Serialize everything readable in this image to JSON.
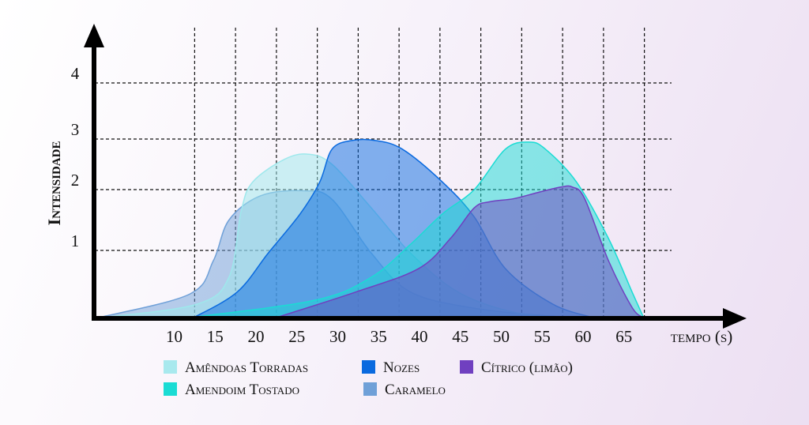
{
  "chart_data": {
    "type": "area",
    "title": "",
    "xlabel": "tempo (s)",
    "ylabel": "Intensidade",
    "x_ticks": [
      10,
      15,
      20,
      25,
      30,
      35,
      40,
      45,
      50,
      55,
      60,
      65
    ],
    "y_ticks": [
      1,
      2,
      3,
      4
    ],
    "xlim": [
      0,
      70
    ],
    "ylim": [
      0,
      4.5
    ],
    "grid": true,
    "legend_position": "bottom",
    "series": [
      {
        "name": "Caramelo",
        "color": "#6fa0d8",
        "x": [
          0.8,
          11.9,
          14.8,
          16.7,
          20.6,
          25.9,
          29.3,
          34.1,
          38.9,
          46.7,
          56,
          61.2
        ],
        "y": [
          0,
          0.35,
          0.85,
          1.5,
          1.9,
          1.98,
          1.84,
          0.96,
          0.38,
          0.14,
          0.02,
          0
        ]
      },
      {
        "name": "Amêndoas Torradas",
        "color": "#9ee8ec",
        "x": [
          1.3,
          12.8,
          16.7,
          18.2,
          19.6,
          23.5,
          26.4,
          29.3,
          34.1,
          38.9,
          44.7,
          51.5,
          58.3
        ],
        "y": [
          0,
          0.2,
          0.6,
          1.65,
          2.15,
          2.6,
          2.7,
          2.5,
          1.7,
          0.96,
          0.38,
          0.08,
          0
        ]
      },
      {
        "name": "Nozes",
        "color": "#0a6adf",
        "x": [
          12.4,
          17.7,
          21.5,
          25.4,
          27.8,
          29.3,
          31.7,
          34.6,
          37.9,
          42.8,
          46.7,
          50.5,
          56.3,
          61.2
        ],
        "y": [
          0,
          0.38,
          0.96,
          1.6,
          2.15,
          2.8,
          2.97,
          2.97,
          2.8,
          2.15,
          1.55,
          0.73,
          0.2,
          0
        ]
      },
      {
        "name": "Amendoim Tostado",
        "color": "#1adcd4",
        "x": [
          12,
          27.3,
          34.1,
          38.9,
          42.8,
          46.7,
          50.5,
          53.4,
          55.4,
          59.2,
          63.1,
          66,
          67.4
        ],
        "y": [
          0,
          0.26,
          0.6,
          1.1,
          1.6,
          2,
          2.8,
          2.94,
          2.8,
          2.15,
          1.2,
          0.38,
          0
        ]
      },
      {
        "name": "Cítrico (limão)",
        "color": "#7040c0",
        "x": [
          22.5,
          32.2,
          39.9,
          43.8,
          46.7,
          48.6,
          51.5,
          54.4,
          57.3,
          58.7,
          60.2,
          63.1,
          66,
          67.4
        ],
        "y": [
          0,
          0.38,
          0.73,
          1.2,
          1.7,
          1.8,
          1.85,
          1.95,
          2.05,
          2.05,
          1.85,
          0.85,
          0.15,
          0
        ]
      }
    ]
  }
}
